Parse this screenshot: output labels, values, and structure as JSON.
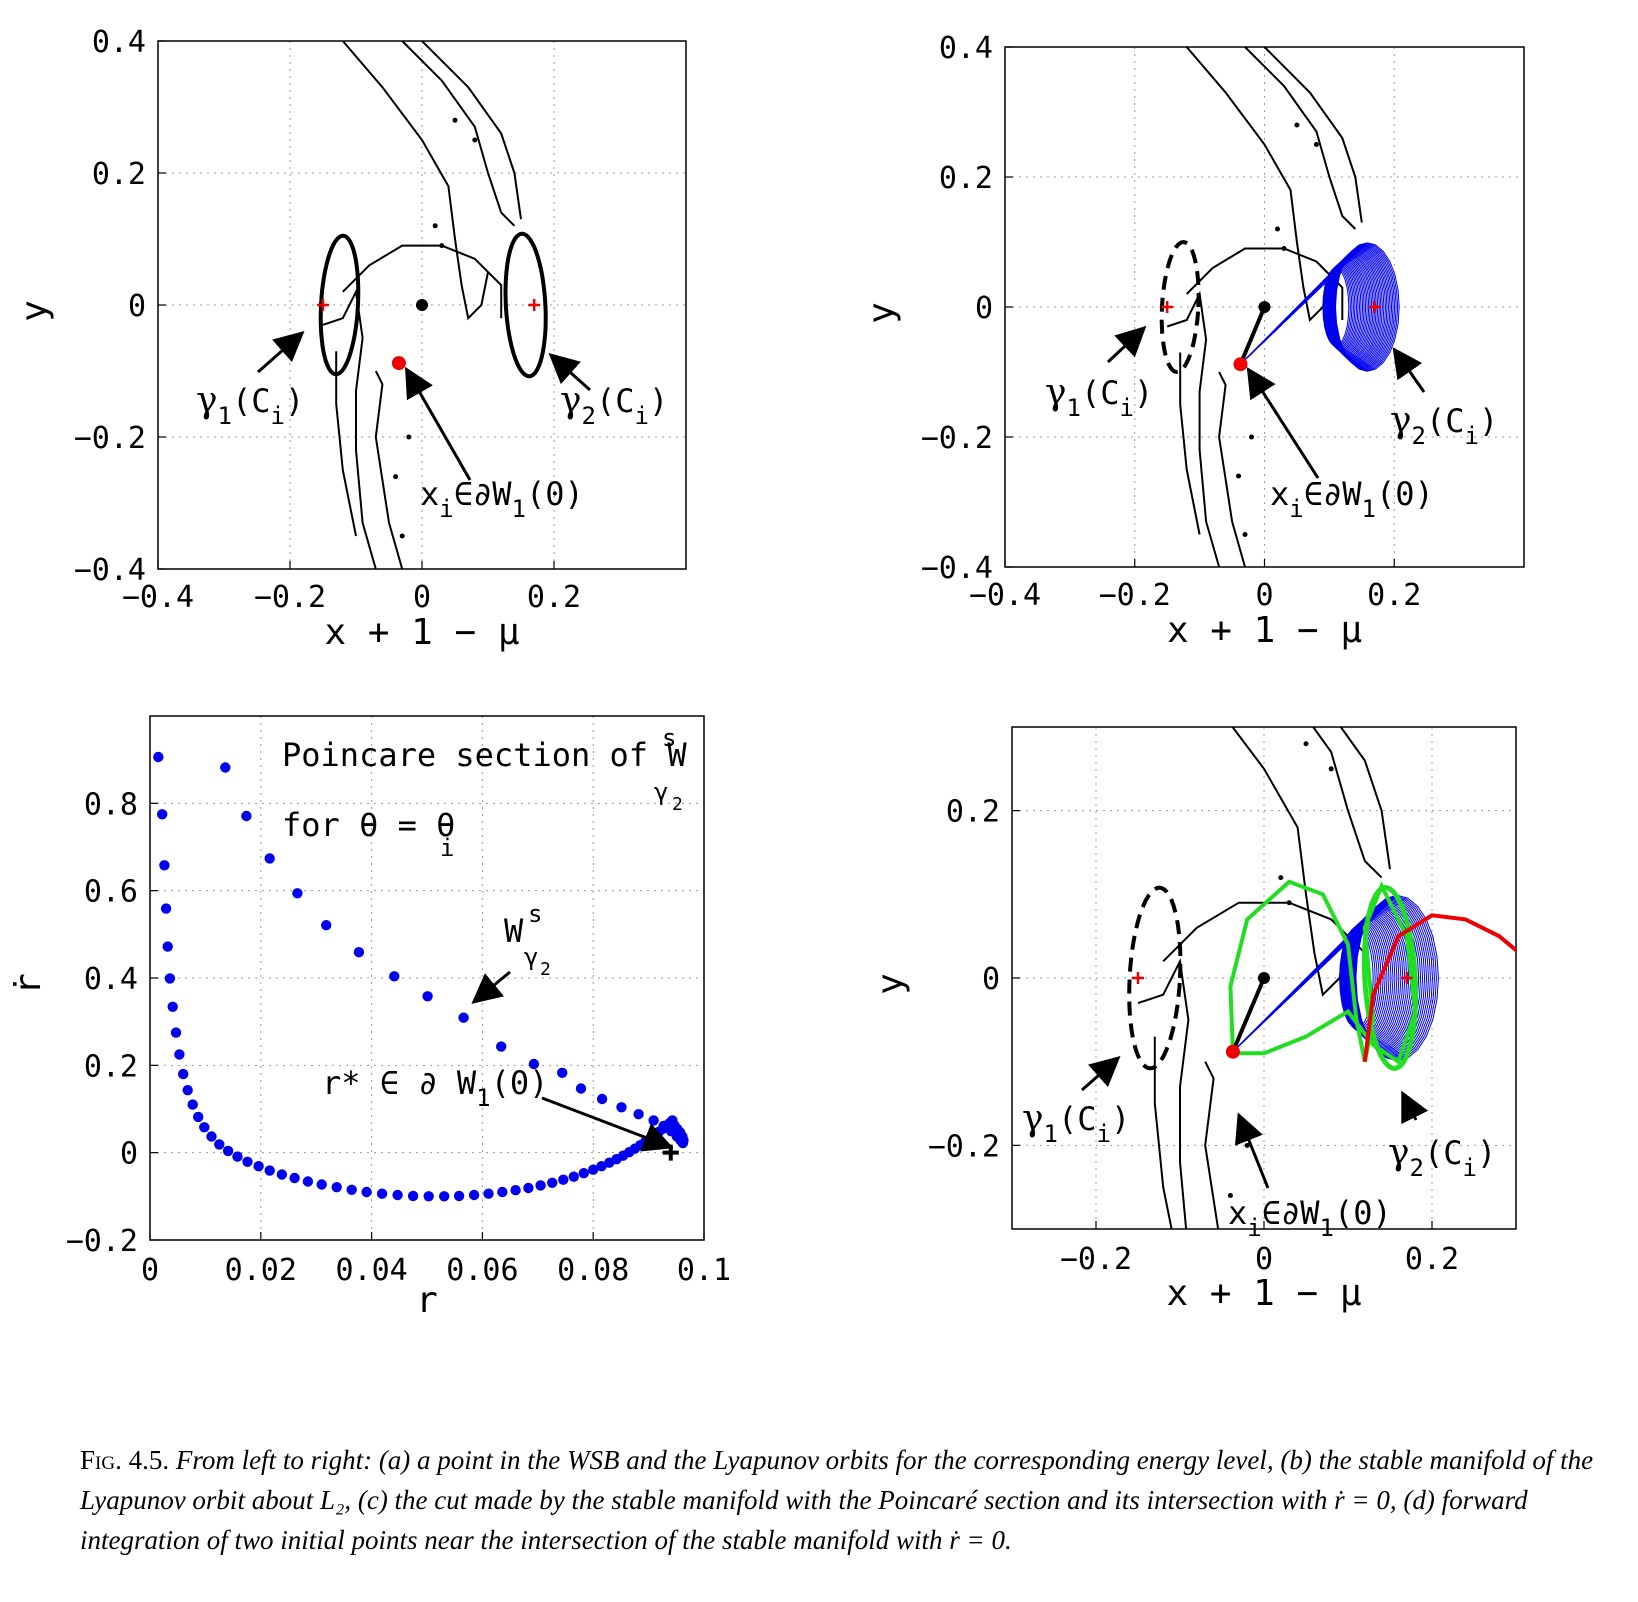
{
  "colors": {
    "manifold": "#0000ee",
    "orbit_black": "#000000",
    "point_red": "#ee0000",
    "forward_green": "#22dd22",
    "forward_red": "#ee0000"
  },
  "chart_data": [
    {
      "panel": "a",
      "type": "scatter",
      "xlabel": "x + 1 − μ",
      "ylabel": "y",
      "xlim": [
        -0.4,
        0.4
      ],
      "ylim": [
        -0.4,
        0.4
      ],
      "xticks": [
        "−0.4",
        "−0.2",
        "0",
        "0.2"
      ],
      "yticks": [
        "0.4",
        "0.2",
        "0",
        "−0.2",
        "−0.4"
      ],
      "grid": true,
      "points": [
        {
          "x": 0.0,
          "y": 0.0,
          "color": "black",
          "marker": "dot"
        },
        {
          "x": -0.15,
          "y": 0.0,
          "color": "red",
          "marker": "plus"
        },
        {
          "x": 0.17,
          "y": 0.0,
          "color": "red",
          "marker": "plus"
        },
        {
          "x": -0.035,
          "y": -0.088,
          "color": "red",
          "marker": "dot"
        }
      ],
      "annotations": {
        "gamma1": {
          "sym": "γ",
          "sub": "1",
          "rest": "(C",
          "sub2": "i",
          "close": ")"
        },
        "gamma2": {
          "sym": "γ",
          "sub": "2",
          "rest": "(C",
          "sub2": "i",
          "close": ")"
        },
        "xi": {
          "a": "x",
          "sub": "i",
          "b": "∈∂W",
          "sub2": "1",
          "c": "(0)"
        }
      }
    },
    {
      "panel": "b",
      "type": "line",
      "xlabel": "x + 1 − μ",
      "ylabel": "y",
      "xlim": [
        -0.4,
        0.4
      ],
      "ylim": [
        -0.4,
        0.4
      ],
      "xticks": [
        "−0.4",
        "−0.2",
        "0",
        "0.2"
      ],
      "yticks": [
        "0.4",
        "0.2",
        "0",
        "−0.2",
        "−0.4"
      ],
      "grid": true,
      "points": [
        {
          "x": 0.0,
          "y": 0.0,
          "color": "black",
          "marker": "dot"
        },
        {
          "x": -0.15,
          "y": 0.0,
          "color": "red",
          "marker": "plus"
        },
        {
          "x": 0.17,
          "y": 0.0,
          "color": "red",
          "marker": "plus"
        },
        {
          "x": -0.037,
          "y": -0.088,
          "color": "red",
          "marker": "dot"
        }
      ]
    },
    {
      "panel": "c",
      "type": "scatter",
      "title": "Poincare section of W",
      "title_sup": "s",
      "title_sub": "γ",
      "title_sub2": "2",
      "title_line2": "for θ = θ",
      "title_line2_sub": "i",
      "xlabel": "r",
      "ylabel": "ṙ",
      "xlim": [
        0,
        0.1
      ],
      "ylim": [
        -0.2,
        1.0
      ],
      "xticks": [
        "0",
        "0.02",
        "0.04",
        "0.06",
        "0.08",
        "0.1"
      ],
      "yticks": [
        "0.8",
        "0.6",
        "0.4",
        "0.2",
        "0",
        "−0.2"
      ],
      "grid": true,
      "x": [
        0.0015,
        0.0022,
        0.0026,
        0.0029,
        0.0032,
        0.0036,
        0.0041,
        0.0047,
        0.0053,
        0.006,
        0.0068,
        0.0077,
        0.0087,
        0.0098,
        0.0111,
        0.0125,
        0.0141,
        0.0158,
        0.0176,
        0.0196,
        0.0216,
        0.0238,
        0.0261,
        0.0285,
        0.031,
        0.0337,
        0.0364,
        0.0391,
        0.0419,
        0.0447,
        0.0475,
        0.0503,
        0.0531,
        0.0558,
        0.0585,
        0.0611,
        0.0636,
        0.066,
        0.0683,
        0.0705,
        0.0726,
        0.0746,
        0.0765,
        0.0783,
        0.08,
        0.0815,
        0.0829,
        0.0842,
        0.0854,
        0.0865,
        0.0875,
        0.0885,
        0.0894,
        0.0903,
        0.0911,
        0.0919,
        0.0926,
        0.0932,
        0.0938,
        0.0943,
        0.0947,
        0.0952,
        0.0957,
        0.0961,
        0.0963,
        0.0962,
        0.0958,
        0.0951,
        0.0941,
        0.0927,
        0.0909,
        0.0882,
        0.0851,
        0.0816,
        0.0778,
        0.0744,
        0.0693,
        0.0634,
        0.0566,
        0.0501,
        0.0441,
        0.0377,
        0.0318,
        0.0266,
        0.0216,
        0.0174,
        0.0136
      ],
      "y": [
        0.906,
        0.775,
        0.658,
        0.559,
        0.472,
        0.399,
        0.334,
        0.275,
        0.225,
        0.18,
        0.143,
        0.11,
        0.082,
        0.058,
        0.037,
        0.019,
        0.004,
        -0.009,
        -0.021,
        -0.031,
        -0.041,
        -0.05,
        -0.058,
        -0.066,
        -0.073,
        -0.079,
        -0.085,
        -0.09,
        -0.094,
        -0.097,
        -0.099,
        -0.1,
        -0.1,
        -0.099,
        -0.097,
        -0.094,
        -0.09,
        -0.086,
        -0.081,
        -0.075,
        -0.069,
        -0.062,
        -0.055,
        -0.047,
        -0.039,
        -0.031,
        -0.023,
        -0.015,
        -0.007,
        0.001,
        0.009,
        0.017,
        0.025,
        0.033,
        0.041,
        0.048,
        0.055,
        0.062,
        0.068,
        0.074,
        0.062,
        0.054,
        0.046,
        0.037,
        0.028,
        0.022,
        0.028,
        0.037,
        0.049,
        0.061,
        0.074,
        0.088,
        0.104,
        0.123,
        0.147,
        0.183,
        0.203,
        0.243,
        0.309,
        0.358,
        0.404,
        0.459,
        0.521,
        0.594,
        0.674,
        0.771,
        0.882
      ],
      "marker_point": {
        "x": 0.094,
        "y": 0.0
      },
      "annotations": {
        "ws": {
          "a": "W",
          "sup": "s",
          "sub": "γ",
          "sub2": "2"
        },
        "rstar": {
          "a": "r* ∈ ∂ W",
          "sub": "1",
          "b": "(0)"
        }
      }
    },
    {
      "panel": "d",
      "type": "line",
      "xlabel": "x + 1 − μ",
      "ylabel": "y",
      "xlim": [
        -0.3,
        0.3
      ],
      "ylim": [
        -0.3,
        0.3
      ],
      "xticks": [
        "−0.2",
        "0",
        "0.2"
      ],
      "yticks": [
        "0.2",
        "0",
        "−0.2"
      ],
      "grid": true,
      "points": [
        {
          "x": 0.0,
          "y": 0.0,
          "color": "black",
          "marker": "dot"
        },
        {
          "x": -0.15,
          "y": 0.0,
          "color": "red",
          "marker": "plus"
        },
        {
          "x": 0.17,
          "y": 0.0,
          "color": "red",
          "marker": "plus"
        },
        {
          "x": -0.037,
          "y": -0.088,
          "color": "red",
          "marker": "dot"
        }
      ]
    }
  ],
  "caption": {
    "label": "Fig. 4.5.",
    "text": "From left to right: (a) a point in the WSB and the Lyapunov orbits for the corresponding energy level, (b) the stable manifold of the Lyapunov orbit about L₂, (c) the cut made by the stable manifold with the Poincaré section and its intersection with ṙ = 0, (d) forward integration of two initial points near the intersection of the stable manifold with ṙ = 0."
  }
}
